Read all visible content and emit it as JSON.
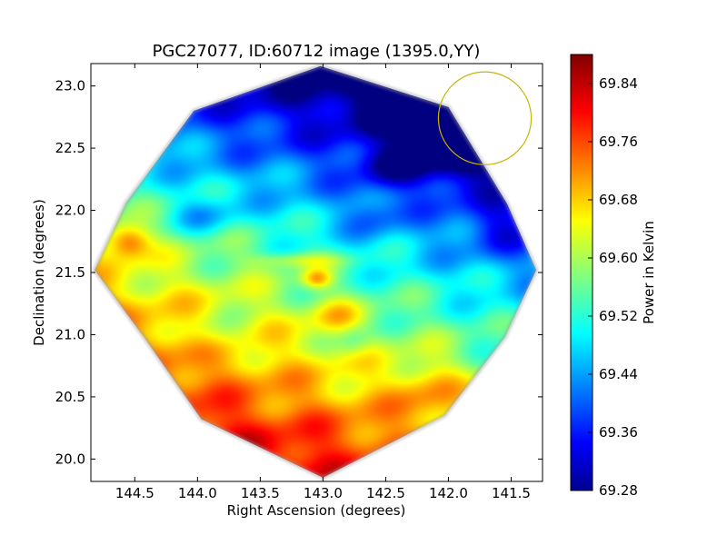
{
  "chart_data": {
    "type": "heatmap",
    "title": "PGC27077, ID:60712 image (1395.0,YY)",
    "xlabel": "Right Ascension (degrees)",
    "ylabel": "Declination (degrees)",
    "xlim": [
      144.85,
      141.25
    ],
    "ylim": [
      19.82,
      23.18
    ],
    "x_ticks": [
      "144.5",
      "144.0",
      "143.5",
      "143.0",
      "142.5",
      "142.0",
      "141.5"
    ],
    "y_ticks": [
      "20.0",
      "20.5",
      "21.0",
      "21.5",
      "22.0",
      "22.5",
      "23.0"
    ],
    "x_tick_values": [
      144.5,
      144.0,
      143.5,
      143.0,
      142.5,
      142.0,
      141.5
    ],
    "y_tick_values": [
      20.0,
      20.5,
      21.0,
      21.5,
      22.0,
      22.5,
      23.0
    ],
    "colorbar": {
      "label": "Power in Kelvin",
      "min": 69.28,
      "max": 69.88,
      "ticks": [
        "69.28",
        "69.36",
        "69.44",
        "69.52",
        "69.60",
        "69.68",
        "69.76",
        "69.84"
      ],
      "tick_values": [
        69.28,
        69.36,
        69.44,
        69.52,
        69.6,
        69.68,
        69.76,
        69.84
      ],
      "colormap": "jet"
    },
    "field_shape": "octagon",
    "field_center": [
      143.05,
      21.51
    ],
    "beam_circle": {
      "center": [
        141.71,
        22.74
      ],
      "radius_deg": 0.37,
      "color": "#c8b400"
    },
    "value_gradient": "cold in the upper-right (~69.30), warm in the lower-left (~69.80)",
    "features": [
      {
        "name": "cold core",
        "ra": 141.95,
        "dec": 22.55,
        "value": 69.3
      },
      {
        "name": "warm ridge",
        "ra": 143.05,
        "dec": 20.05,
        "value": 69.8
      },
      {
        "name": "warm spot",
        "ra": 144.55,
        "dec": 21.75,
        "value": 69.74
      },
      {
        "name": "warm filament",
        "ra": 143.0,
        "dec": 21.45,
        "value": 69.78
      }
    ]
  }
}
